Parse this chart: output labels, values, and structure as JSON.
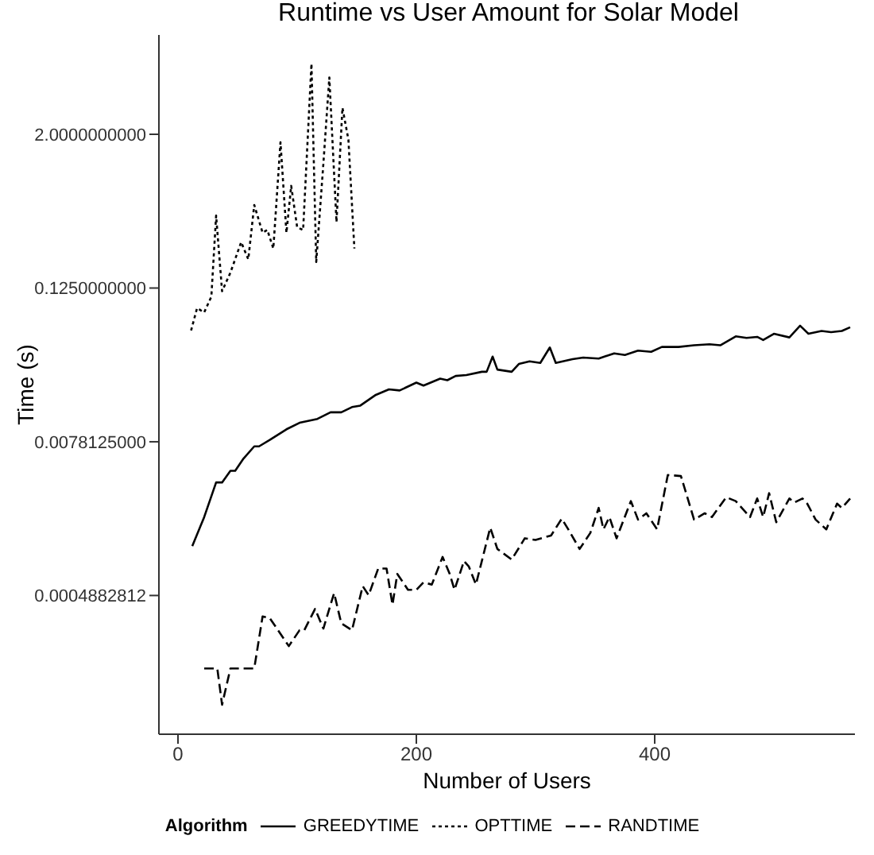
{
  "chart_data": {
    "type": "line",
    "title": "Runtime vs User Amount for Solar Model",
    "xlabel": "Number of Users",
    "ylabel": "Time (s)",
    "legend_title": "Algorithm",
    "log": "y",
    "legend": "bottom",
    "marker": "none",
    "xlim": [
      -16,
      568
    ],
    "xticks": [
      0,
      200,
      400
    ],
    "ylim": [
      4e-05,
      12
    ],
    "yticks": [
      {
        "value": 2,
        "label": "2.0000000000"
      },
      {
        "value": 0.125,
        "label": "0.1250000000"
      },
      {
        "value": 0.0078125,
        "label": "0.0078125000"
      },
      {
        "value": 0.00048828125,
        "label": "0.0004882812"
      }
    ],
    "series": [
      {
        "name": "GREEDYTIME",
        "color": "#000000",
        "line_style": "solid",
        "x": [
          12,
          22,
          32,
          37,
          44,
          48,
          55,
          64,
          68,
          77,
          91,
          102,
          117,
          128,
          137,
          146,
          153,
          166,
          177,
          186,
          200,
          206,
          220,
          226,
          233,
          242,
          255,
          259,
          264,
          268,
          280,
          286,
          295,
          304,
          312,
          317,
          331,
          340,
          353,
          366,
          375,
          386,
          397,
          406,
          420,
          433,
          446,
          455,
          468,
          477,
          486,
          491,
          500,
          513,
          522,
          529,
          540,
          548,
          557,
          564
        ],
        "values": [
          0.00119,
          0.00201,
          0.00375,
          0.00375,
          0.00463,
          0.00463,
          0.00577,
          0.00719,
          0.00719,
          0.00807,
          0.00978,
          0.011,
          0.0118,
          0.0133,
          0.0133,
          0.0146,
          0.015,
          0.0182,
          0.0201,
          0.0197,
          0.0227,
          0.0215,
          0.0244,
          0.0237,
          0.0256,
          0.026,
          0.0276,
          0.0276,
          0.0363,
          0.0287,
          0.0276,
          0.0318,
          0.0333,
          0.0324,
          0.0428,
          0.0324,
          0.0347,
          0.0357,
          0.035,
          0.0385,
          0.0374,
          0.0404,
          0.0396,
          0.0432,
          0.0432,
          0.0445,
          0.0453,
          0.0445,
          0.0523,
          0.0508,
          0.0518,
          0.0489,
          0.0548,
          0.0513,
          0.0634,
          0.0548,
          0.0576,
          0.0564,
          0.0576,
          0.0616
        ]
      },
      {
        "name": "OPTTIME",
        "color": "#000000",
        "line_style": "dotted",
        "x": [
          11,
          16,
          22,
          28,
          32,
          37,
          44,
          53,
          59,
          64,
          71,
          75,
          80,
          86,
          91,
          95,
          100,
          105,
          112,
          116,
          122,
          127,
          133,
          138,
          143,
          148
        ],
        "values": [
          0.0581,
          0.087,
          0.0806,
          0.107,
          0.461,
          0.118,
          0.165,
          0.286,
          0.21,
          0.559,
          0.339,
          0.356,
          0.255,
          1.73,
          0.339,
          0.789,
          0.374,
          0.356,
          7.15,
          0.2,
          1.18,
          5.58,
          0.411,
          3.23,
          1.82,
          0.255
        ]
      },
      {
        "name": "RANDTIME",
        "color": "#000000",
        "line_style": "dashed",
        "x": [
          22,
          33,
          37,
          44,
          64,
          71,
          77,
          93,
          102,
          106,
          115,
          122,
          131,
          137,
          146,
          155,
          160,
          168,
          175,
          180,
          184,
          193,
          200,
          206,
          213,
          222,
          228,
          232,
          240,
          244,
          250,
          262,
          268,
          280,
          291,
          300,
          313,
          322,
          328,
          337,
          346,
          353,
          357,
          362,
          368,
          380,
          386,
          393,
          402,
          411,
          422,
          433,
          442,
          448,
          460,
          468,
          480,
          486,
          491,
          496,
          502,
          513,
          517,
          524,
          528,
          535,
          544,
          553,
          557,
          564
        ],
        "values": [
          0.000131,
          0.000131,
          6.81e-05,
          0.000131,
          0.000131,
          0.000335,
          0.000325,
          0.000196,
          0.000261,
          0.000261,
          0.000383,
          0.000269,
          0.00051,
          0.000296,
          0.000261,
          0.000578,
          0.000491,
          0.000794,
          0.000794,
          0.000413,
          0.000721,
          0.000541,
          0.000541,
          0.000618,
          0.000595,
          0.000979,
          0.000721,
          0.000541,
          0.000909,
          0.000825,
          0.000595,
          0.00166,
          0.00113,
          0.000934,
          0.00137,
          0.00133,
          0.00144,
          0.00195,
          0.00158,
          0.00113,
          0.00151,
          0.00237,
          0.00161,
          0.00201,
          0.00137,
          0.00268,
          0.00192,
          0.00215,
          0.00161,
          0.00429,
          0.00421,
          0.00192,
          0.00215,
          0.00201,
          0.00287,
          0.00268,
          0.00201,
          0.00281,
          0.00201,
          0.00309,
          0.00183,
          0.00281,
          0.00261,
          0.00281,
          0.00256,
          0.00192,
          0.00161,
          0.00256,
          0.00237,
          0.00281
        ]
      }
    ]
  }
}
